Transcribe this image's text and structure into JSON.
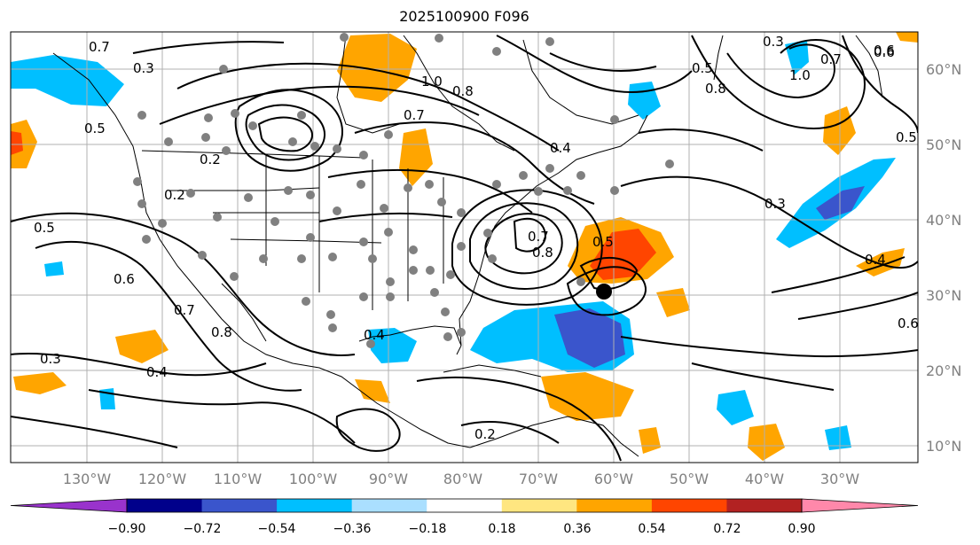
{
  "title": "2025100900 F096",
  "lon_labels": [
    "130°W",
    "120°W",
    "110°W",
    "100°W",
    "90°W",
    "80°W",
    "70°W",
    "60°W",
    "50°W",
    "40°W",
    "30°W"
  ],
  "lat_labels": [
    "60°N",
    "50°N",
    "40°N",
    "30°N",
    "20°N",
    "10°N"
  ],
  "colorbar": {
    "tick_labels": [
      "−0.90",
      "−0.72",
      "−0.54",
      "−0.36",
      "−0.18",
      "0.18",
      "0.36",
      "0.54",
      "0.72",
      "0.90"
    ],
    "colors": [
      "#9933cc",
      "#00008b",
      "#3a55cc",
      "#00bfff",
      "#aadfff",
      "#ffffff",
      "#ffe680",
      "#ffa500",
      "#ff4500",
      "#b22222",
      "#ff88aa"
    ]
  },
  "contour_labels": [
    "0.7",
    "0.3",
    "0.5",
    "0.2",
    "0.2",
    "0.5",
    "0.6",
    "0.7",
    "0.8",
    "0.4",
    "0.3",
    "1.0",
    "0.7",
    "0.8",
    "0.4",
    "0.5",
    "0.7",
    "0.8",
    "0.3",
    "0.5",
    "0.4",
    "0.6",
    "0.7",
    "0.8",
    "1.0",
    "0.2",
    "0.6",
    "0.3",
    "0.5",
    "0.6",
    "0.4"
  ],
  "colors": {
    "pos_light": "#ffa500",
    "pos_mid": "#ff4500",
    "neg_light": "#00bfff",
    "neg_mid": "#3a55cc",
    "stations": "#808080",
    "grid": "#b0b0b0"
  }
}
